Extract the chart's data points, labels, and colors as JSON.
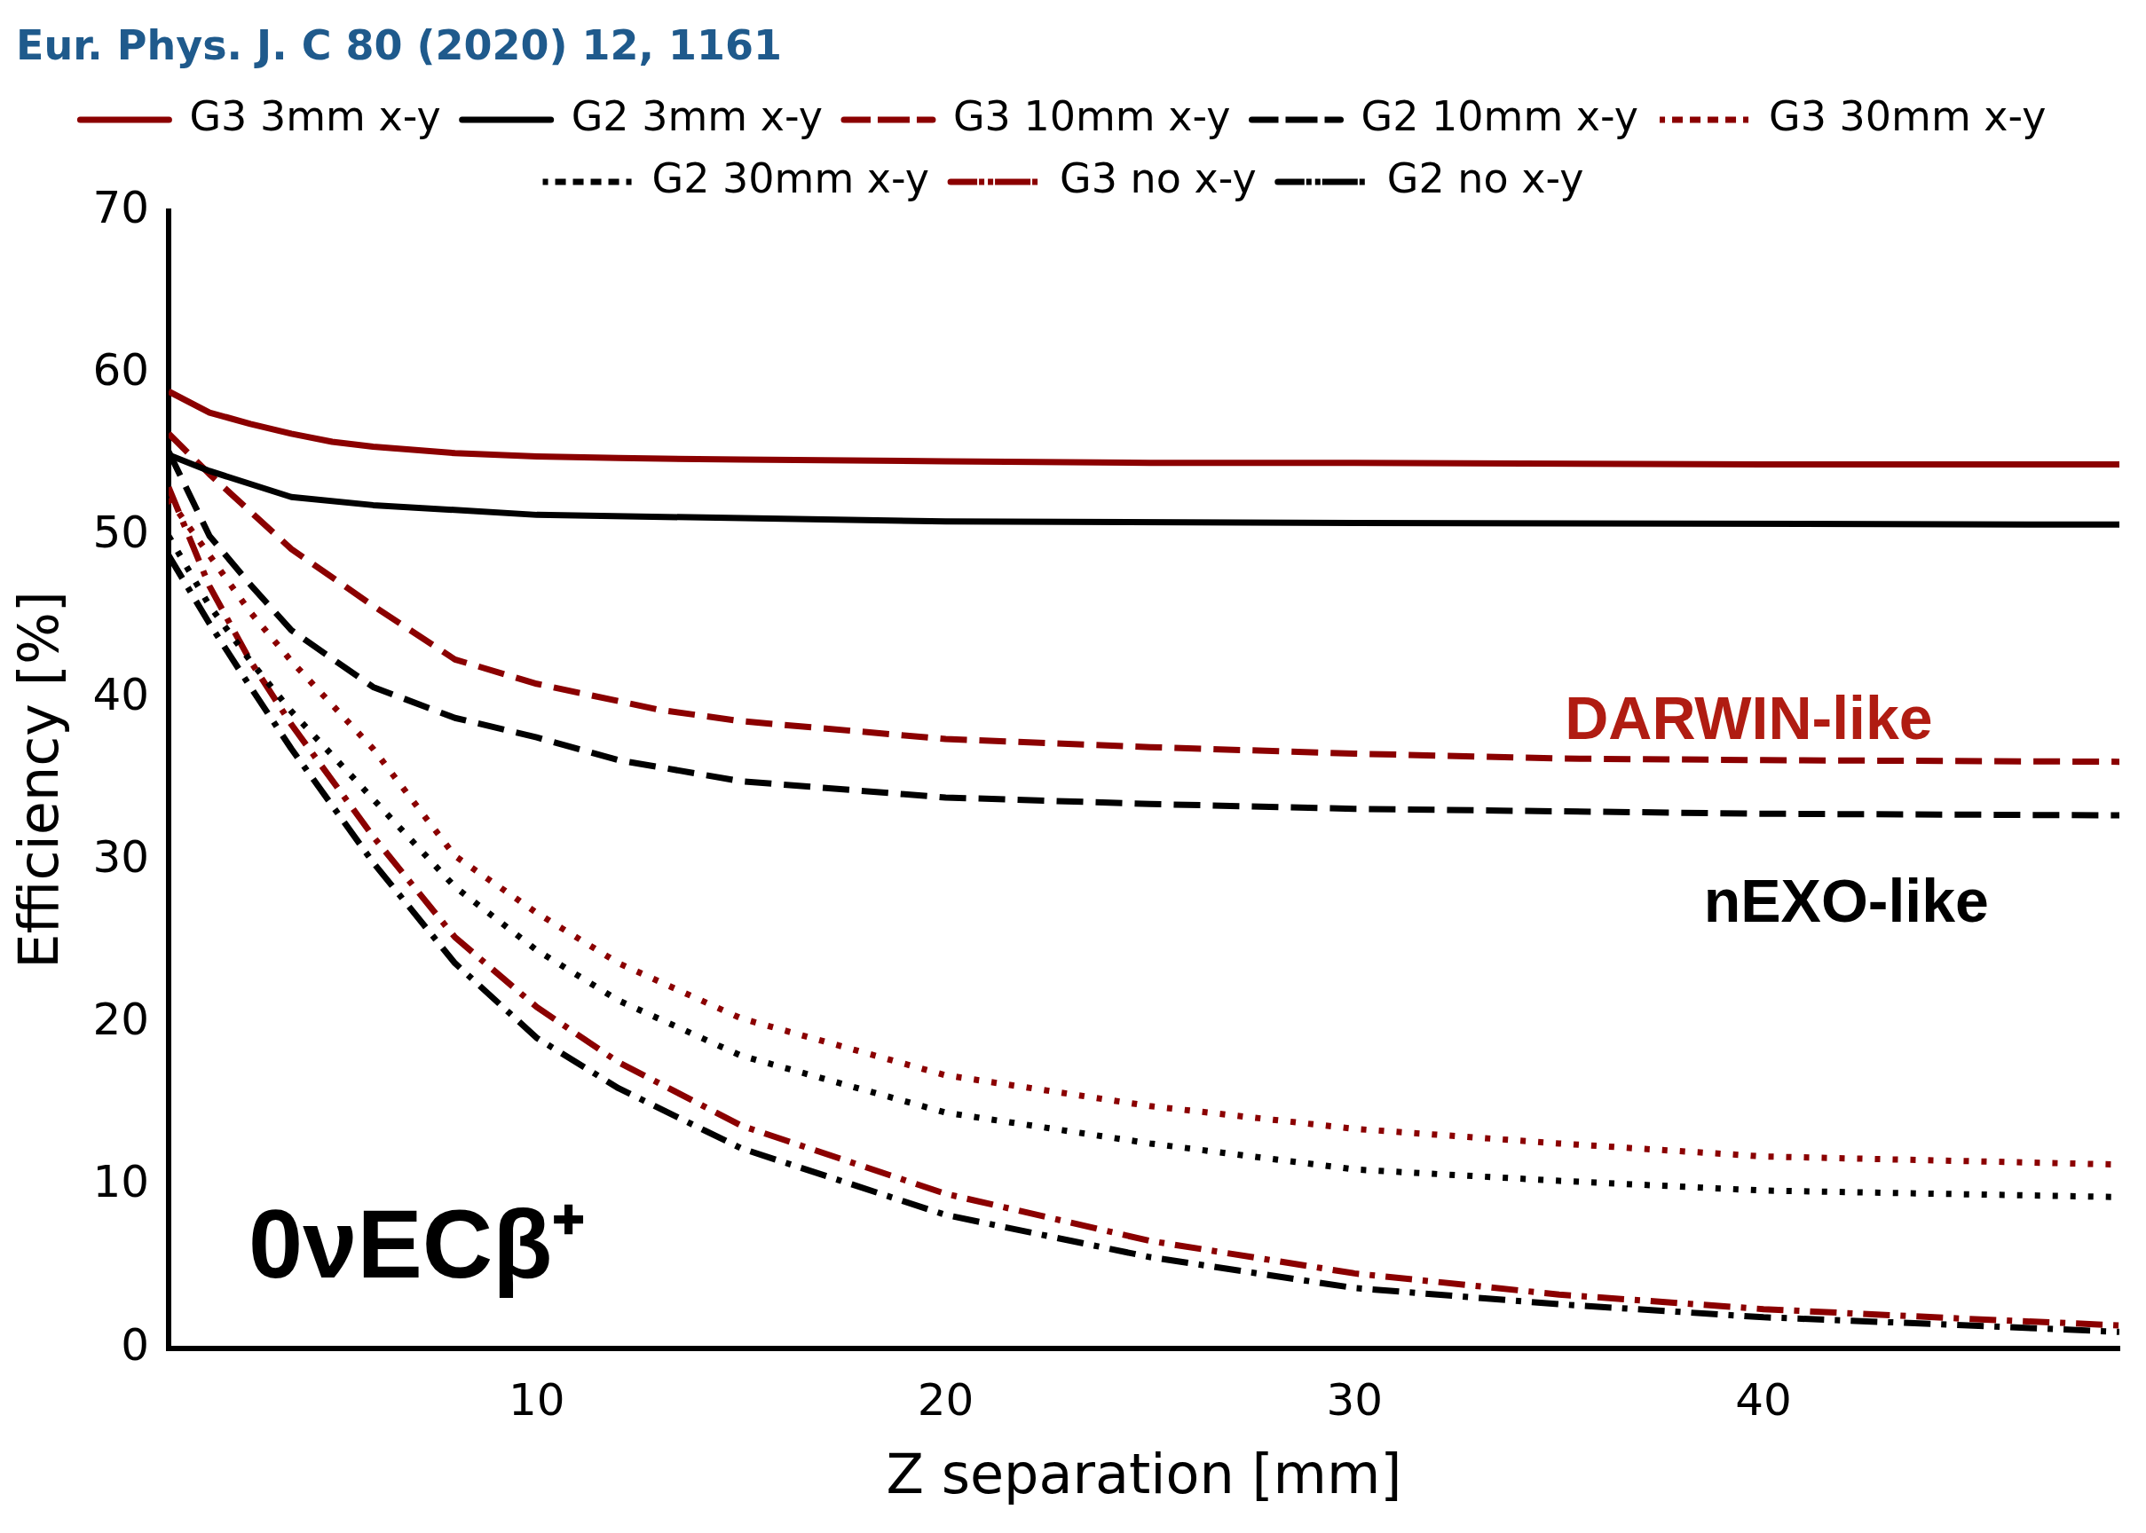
{
  "chart_data": {
    "type": "line",
    "xlabel": "Z separation [mm]",
    "ylabel": "Efficiency [%]",
    "xlim": [
      1,
      48.7
    ],
    "xticks": [
      10,
      20,
      30,
      40
    ],
    "ylim": [
      0,
      70
    ],
    "yticks": [
      0,
      10,
      20,
      30,
      40,
      50,
      60,
      70
    ],
    "grid": false,
    "legend": "top",
    "marker": "none",
    "annotations": [
      "Eur. Phys. J. C 80 (2020) 12, 1161",
      "0νECβ⁺",
      "DARWIN-like",
      "nEXO-like"
    ],
    "series": [
      {
        "name": "G3 3mm x-y",
        "color": "#8b0000",
        "line_style": "solid",
        "x": [
          1,
          2,
          3,
          4,
          5,
          6,
          8,
          10,
          12,
          15,
          20,
          25,
          30,
          40,
          48.7
        ],
        "values": [
          58.9,
          57.6,
          56.9,
          56.3,
          55.8,
          55.5,
          55.1,
          54.9,
          54.8,
          54.7,
          54.6,
          54.5,
          54.5,
          54.4,
          54.4
        ]
      },
      {
        "name": "G2 3mm x-y",
        "color": "#000000",
        "line_style": "solid",
        "x": [
          1,
          2,
          4,
          6,
          10,
          20,
          30,
          48.7
        ],
        "values": [
          55.0,
          54.0,
          52.4,
          51.9,
          51.3,
          50.9,
          50.8,
          50.7
        ]
      },
      {
        "name": "G3 10mm x-y",
        "color": "#8b0000",
        "line_style": "dashed",
        "x": [
          1,
          2,
          3,
          4,
          6,
          8,
          10,
          13,
          15,
          20,
          25,
          30,
          35,
          40,
          48.7
        ],
        "values": [
          56.3,
          53.8,
          51.5,
          49.2,
          45.7,
          42.4,
          40.9,
          39.3,
          38.6,
          37.5,
          37.0,
          36.6,
          36.3,
          36.2,
          36.1
        ]
      },
      {
        "name": "G2 10mm x-y",
        "color": "#000000",
        "line_style": "dashed",
        "x": [
          1,
          2,
          3,
          4,
          6,
          8,
          10,
          12,
          15,
          20,
          25,
          30,
          40,
          48.7
        ],
        "values": [
          55.2,
          50.0,
          47.0,
          44.2,
          40.7,
          38.8,
          37.6,
          36.2,
          34.9,
          33.9,
          33.5,
          33.2,
          32.9,
          32.8
        ]
      },
      {
        "name": "G3 30mm x-y",
        "color": "#8b0000",
        "line_style": "dotted",
        "x": [
          1,
          2,
          3,
          4,
          6,
          8,
          10,
          12,
          15,
          20,
          25,
          30,
          35,
          40,
          48.7
        ],
        "values": [
          52.3,
          48.8,
          45.3,
          42.3,
          36.9,
          30.3,
          26.8,
          23.7,
          20.3,
          16.8,
          14.9,
          13.5,
          12.6,
          11.8,
          11.3
        ]
      },
      {
        "name": "G2 30mm x-y",
        "color": "#000000",
        "line_style": "dotted",
        "x": [
          1,
          2,
          3,
          4,
          6,
          8,
          10,
          12,
          15,
          20,
          25,
          30,
          35,
          40,
          48.7
        ],
        "values": [
          50.0,
          45.7,
          42.3,
          39.2,
          33.8,
          28.4,
          24.5,
          21.4,
          18.0,
          14.5,
          12.6,
          11.0,
          10.3,
          9.7,
          9.3
        ]
      },
      {
        "name": "G3 no x-y",
        "color": "#8b0000",
        "line_style": "dashdot",
        "x": [
          1,
          2,
          3,
          4,
          6,
          8,
          10,
          12,
          15,
          20,
          25,
          30,
          35,
          40,
          45,
          48.7
        ],
        "values": [
          53.0,
          46.9,
          42.3,
          38.4,
          31.5,
          25.3,
          21.0,
          17.6,
          13.7,
          9.5,
          6.6,
          4.6,
          3.3,
          2.4,
          1.8,
          1.4
        ]
      },
      {
        "name": "G2 no x-y",
        "color": "#000000",
        "line_style": "dashdot",
        "x": [
          1,
          2,
          3,
          4,
          6,
          8,
          10,
          12,
          15,
          20,
          25,
          30,
          35,
          40,
          45,
          48.7
        ],
        "values": [
          48.8,
          44.6,
          40.7,
          36.9,
          29.9,
          23.7,
          19.1,
          16.0,
          12.3,
          8.2,
          5.6,
          3.7,
          2.7,
          1.9,
          1.4,
          1.0
        ]
      }
    ]
  }
}
